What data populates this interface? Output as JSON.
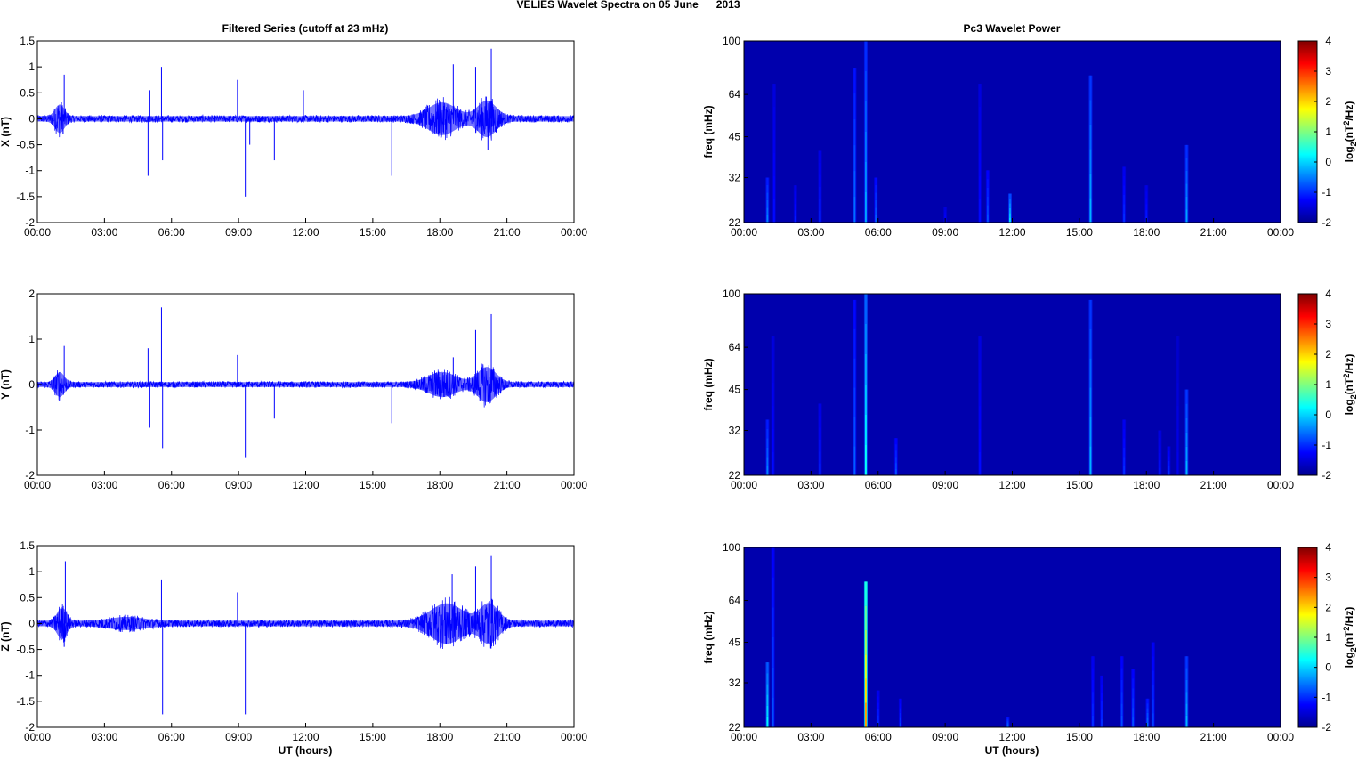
{
  "figure": {
    "suptitle": "VELIES Wavelet Spectra on 05 June      2013",
    "left_title": "Filtered Series (cutoff at 23 mHz)",
    "right_title": "Pc3 Wavelet Power",
    "xlabel": "UT (hours)",
    "freq_label": "freq (mHz)",
    "colorbar_label_base": "log",
    "colorbar_label_sub": "2",
    "colorbar_label_rest_a": "(nT",
    "colorbar_label_sup": "2",
    "colorbar_label_rest_b": "/Hz)",
    "x_ticks": [
      "00:00",
      "03:00",
      "06:00",
      "09:00",
      "12:00",
      "15:00",
      "18:00",
      "21:00",
      "00:00"
    ],
    "freq_ticks": [
      "100",
      "64",
      "45",
      "32",
      "22"
    ],
    "colorbar_ticks": [
      "4",
      "3",
      "2",
      "1",
      "0",
      "-1",
      "-2"
    ],
    "series_color": "#0000ff",
    "spectrogram_background": "#00008f"
  },
  "chart_data": [
    {
      "type": "line",
      "ylabel": "X (nT)",
      "x_range_hours": [
        0,
        24
      ],
      "ylim": [
        -2,
        1.5
      ],
      "yticks": [
        "1.5",
        "1",
        "0.5",
        "0",
        "-0.5",
        "-1",
        "-1.5",
        "-2"
      ],
      "noise_amplitude": 0.07,
      "bursts": [
        {
          "t": 1.0,
          "width": 0.4,
          "amp": 0.3
        },
        {
          "t": 18.1,
          "width": 1.2,
          "amp": 0.35
        },
        {
          "t": 20.1,
          "width": 0.8,
          "amp": 0.4
        }
      ],
      "spikes": [
        {
          "t": 1.2,
          "v": 0.85
        },
        {
          "t": 1.15,
          "v": -0.3
        },
        {
          "t": 5.0,
          "v": 0.55
        },
        {
          "t": 4.95,
          "v": -1.1
        },
        {
          "t": 5.55,
          "v": 1.0
        },
        {
          "t": 5.6,
          "v": -0.8
        },
        {
          "t": 8.95,
          "v": 0.75
        },
        {
          "t": 9.3,
          "v": -1.5
        },
        {
          "t": 9.5,
          "v": -0.5
        },
        {
          "t": 10.6,
          "v": -0.8
        },
        {
          "t": 11.9,
          "v": 0.55
        },
        {
          "t": 15.85,
          "v": -1.1
        },
        {
          "t": 18.6,
          "v": 1.05
        },
        {
          "t": 19.6,
          "v": 1.0
        },
        {
          "t": 20.3,
          "v": 1.35
        },
        {
          "t": 20.15,
          "v": -0.6
        }
      ]
    },
    {
      "type": "line",
      "ylabel": "Y (nT)",
      "x_range_hours": [
        0,
        24
      ],
      "ylim": [
        -2,
        2
      ],
      "yticks": [
        "2",
        "1",
        "0",
        "-1",
        "-2"
      ],
      "noise_amplitude": 0.07,
      "bursts": [
        {
          "t": 1.0,
          "width": 0.4,
          "amp": 0.3
        },
        {
          "t": 18.1,
          "width": 1.2,
          "amp": 0.3
        },
        {
          "t": 20.1,
          "width": 0.8,
          "amp": 0.45
        }
      ],
      "spikes": [
        {
          "t": 1.2,
          "v": 0.85
        },
        {
          "t": 4.95,
          "v": 0.8
        },
        {
          "t": 5.0,
          "v": -0.95
        },
        {
          "t": 5.55,
          "v": 1.7
        },
        {
          "t": 5.6,
          "v": -1.4
        },
        {
          "t": 8.95,
          "v": 0.65
        },
        {
          "t": 9.3,
          "v": -1.6
        },
        {
          "t": 10.6,
          "v": -0.75
        },
        {
          "t": 15.85,
          "v": -0.85
        },
        {
          "t": 18.6,
          "v": 0.6
        },
        {
          "t": 19.6,
          "v": 1.2
        },
        {
          "t": 20.3,
          "v": 1.55
        }
      ]
    },
    {
      "type": "line",
      "ylabel": "Z (nT)",
      "x_range_hours": [
        0,
        24
      ],
      "ylim": [
        -2,
        1.5
      ],
      "yticks": [
        "1.5",
        "1",
        "0.5",
        "0",
        "-0.5",
        "-1",
        "-1.5",
        "-2"
      ],
      "noise_amplitude": 0.07,
      "bursts": [
        {
          "t": 1.1,
          "width": 0.4,
          "amp": 0.35
        },
        {
          "t": 4.0,
          "width": 1.5,
          "amp": 0.1
        },
        {
          "t": 18.3,
          "width": 1.4,
          "amp": 0.45
        },
        {
          "t": 20.2,
          "width": 0.8,
          "amp": 0.45
        }
      ],
      "spikes": [
        {
          "t": 1.25,
          "v": 1.2
        },
        {
          "t": 1.2,
          "v": -0.45
        },
        {
          "t": 5.55,
          "v": 0.85
        },
        {
          "t": 5.6,
          "v": -1.75
        },
        {
          "t": 8.95,
          "v": 0.6
        },
        {
          "t": 9.3,
          "v": -1.75
        },
        {
          "t": 18.55,
          "v": 0.95
        },
        {
          "t": 19.6,
          "v": 1.1
        },
        {
          "t": 20.3,
          "v": 1.3
        }
      ]
    },
    {
      "type": "heatmap",
      "component": "X",
      "freq_range_mHz": [
        22,
        100
      ],
      "colorbar_range": [
        -2,
        4
      ],
      "background_level": -1.8,
      "streaks": [
        {
          "t": 1.05,
          "fmax": 32,
          "lvl": -0.5
        },
        {
          "t": 1.35,
          "fmax": 70,
          "lvl": -1.2
        },
        {
          "t": 2.3,
          "fmax": 30,
          "lvl": -1.1
        },
        {
          "t": 3.4,
          "fmax": 40,
          "lvl": -1.0
        },
        {
          "t": 4.95,
          "fmax": 80,
          "lvl": -0.6
        },
        {
          "t": 5.45,
          "fmax": 100,
          "lvl": -0.3
        },
        {
          "t": 5.9,
          "fmax": 32,
          "lvl": -0.7
        },
        {
          "t": 9.0,
          "fmax": 25,
          "lvl": -1.2
        },
        {
          "t": 10.55,
          "fmax": 70,
          "lvl": -1.2
        },
        {
          "t": 10.9,
          "fmax": 34,
          "lvl": -0.8
        },
        {
          "t": 11.9,
          "fmax": 28,
          "lvl": 0.0
        },
        {
          "t": 15.5,
          "fmax": 75,
          "lvl": -0.2
        },
        {
          "t": 17.0,
          "fmax": 35,
          "lvl": -1.0
        },
        {
          "t": 18.0,
          "fmax": 30,
          "lvl": -1.1
        },
        {
          "t": 19.8,
          "fmax": 42,
          "lvl": -0.3
        }
      ]
    },
    {
      "type": "heatmap",
      "component": "Y",
      "freq_range_mHz": [
        22,
        100
      ],
      "colorbar_range": [
        -2,
        4
      ],
      "background_level": -1.8,
      "streaks": [
        {
          "t": 1.05,
          "fmax": 35,
          "lvl": -0.5
        },
        {
          "t": 1.3,
          "fmax": 70,
          "lvl": -1.2
        },
        {
          "t": 3.4,
          "fmax": 40,
          "lvl": -1.0
        },
        {
          "t": 4.95,
          "fmax": 95,
          "lvl": -0.7
        },
        {
          "t": 5.45,
          "fmax": 100,
          "lvl": 0.3
        },
        {
          "t": 6.8,
          "fmax": 30,
          "lvl": -0.8
        },
        {
          "t": 10.55,
          "fmax": 70,
          "lvl": -1.2
        },
        {
          "t": 15.5,
          "fmax": 95,
          "lvl": -0.2
        },
        {
          "t": 17.0,
          "fmax": 35,
          "lvl": -1.0
        },
        {
          "t": 18.6,
          "fmax": 32,
          "lvl": -1.1
        },
        {
          "t": 19.0,
          "fmax": 28,
          "lvl": -1.0
        },
        {
          "t": 19.8,
          "fmax": 45,
          "lvl": -0.2
        },
        {
          "t": 19.4,
          "fmax": 70,
          "lvl": -1.4
        }
      ]
    },
    {
      "type": "heatmap",
      "component": "Z",
      "freq_range_mHz": [
        22,
        100
      ],
      "colorbar_range": [
        -2,
        4
      ],
      "background_level": -1.8,
      "streaks": [
        {
          "t": 1.05,
          "fmax": 38,
          "lvl": 0.2
        },
        {
          "t": 1.3,
          "fmax": 100,
          "lvl": -0.8
        },
        {
          "t": 5.45,
          "fmax": 75,
          "lvl": 2.3
        },
        {
          "t": 6.0,
          "fmax": 30,
          "lvl": -1.0
        },
        {
          "t": 7.0,
          "fmax": 28,
          "lvl": -0.9
        },
        {
          "t": 11.8,
          "fmax": 24,
          "lvl": -0.6
        },
        {
          "t": 15.6,
          "fmax": 40,
          "lvl": -1.0
        },
        {
          "t": 16.0,
          "fmax": 34,
          "lvl": -1.0
        },
        {
          "t": 16.9,
          "fmax": 40,
          "lvl": -0.8
        },
        {
          "t": 17.4,
          "fmax": 36,
          "lvl": -0.8
        },
        {
          "t": 18.05,
          "fmax": 28,
          "lvl": -0.6
        },
        {
          "t": 18.3,
          "fmax": 45,
          "lvl": -0.9
        },
        {
          "t": 19.8,
          "fmax": 40,
          "lvl": -0.2
        }
      ]
    }
  ]
}
